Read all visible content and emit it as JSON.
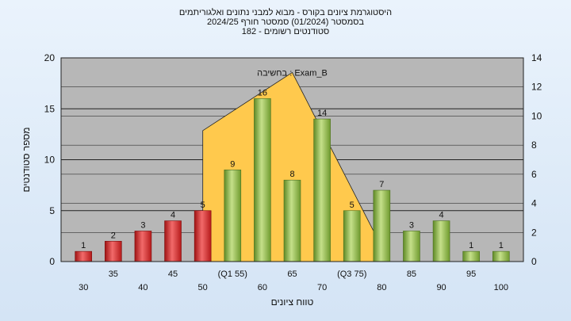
{
  "header": {
    "title": "היסטוגרמת ציונים בקורס - מבוא למבני נתונים ואלגוריתמים",
    "semester_line": "בסמסטר  (01/2024)  סמסטר חורף 2024/25",
    "students_line": "סטודנטים רשומים - 182"
  },
  "chart_data": {
    "type": "bar",
    "categories": [
      "30",
      "35",
      "40",
      "45",
      "50",
      "(Q1 55)",
      "60",
      "65",
      "70",
      "(Q3 75)",
      "80",
      "85",
      "90",
      "95",
      "100"
    ],
    "values": [
      1,
      2,
      3,
      4,
      5,
      9,
      16,
      8,
      14,
      5,
      7,
      3,
      4,
      1,
      1
    ],
    "data_labels": [
      "1",
      "2",
      "3",
      "4",
      "5",
      "9",
      "16",
      "8",
      "14",
      "5",
      "7",
      "3",
      "4",
      "1",
      "1"
    ],
    "bar_colors": [
      "#d42b2b",
      "#d42b2b",
      "#d42b2b",
      "#d42b2b",
      "#d42b2b",
      "#86b23e",
      "#86b23e",
      "#86b23e",
      "#86b23e",
      "#86b23e",
      "#86b23e",
      "#86b23e",
      "#86b23e",
      "#86b23e",
      "#86b23e"
    ],
    "ylabel": "מספר סטודנטים",
    "xlabel": "טווח ציונים",
    "ylim": [
      0,
      20
    ],
    "yticks": [
      "0",
      "5",
      "10",
      "15",
      "20"
    ],
    "y2lim": [
      0,
      14
    ],
    "y2ticks": [
      "0",
      "2",
      "4",
      "6",
      "8",
      "10",
      "12",
      "14"
    ],
    "overlay": {
      "label": "Exam_B : בחשיבה",
      "shape": [
        [
          50,
          0
        ],
        [
          50,
          9
        ],
        [
          65,
          13
        ],
        [
          80,
          1
        ],
        [
          80,
          0
        ]
      ],
      "color": "#ffc94d"
    },
    "grid": true,
    "legend": "none"
  }
}
